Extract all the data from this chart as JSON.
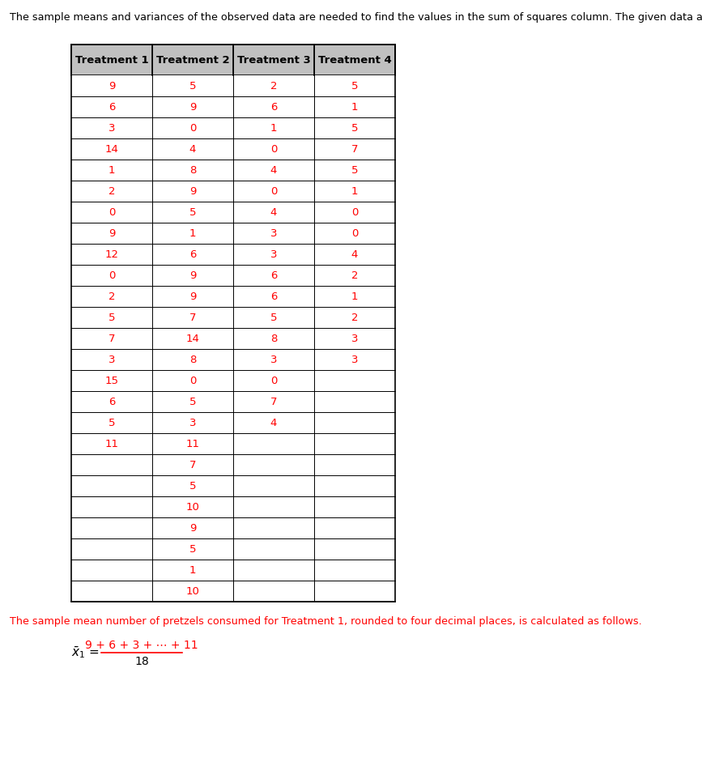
{
  "header": [
    "Treatment 1",
    "Treatment 2",
    "Treatment 3",
    "Treatment 4"
  ],
  "col1": [
    "9",
    "6",
    "3",
    "14",
    "1",
    "2",
    "0",
    "9",
    "12",
    "0",
    "2",
    "5",
    "7",
    "3",
    "15",
    "6",
    "5",
    "11",
    "",
    "",
    "",
    "",
    "",
    "",
    ""
  ],
  "col2": [
    "5",
    "9",
    "0",
    "4",
    "8",
    "9",
    "5",
    "1",
    "6",
    "9",
    "9",
    "7",
    "14",
    "8",
    "0",
    "5",
    "3",
    "11",
    "7",
    "5",
    "10",
    "9",
    "5",
    "1",
    "10"
  ],
  "col3": [
    "2",
    "6",
    "1",
    "0",
    "4",
    "0",
    "4",
    "3",
    "3",
    "6",
    "6",
    "5",
    "8",
    "3",
    "0",
    "7",
    "4",
    "",
    "",
    "",
    "",
    "",
    "",
    "",
    ""
  ],
  "col4": [
    "5",
    "1",
    "5",
    "7",
    "5",
    "1",
    "0",
    "0",
    "4",
    "2",
    "1",
    "2",
    "3",
    "3",
    "",
    "",
    "",
    "",
    "",
    "",
    "",
    "",
    "",
    "",
    ""
  ],
  "intro_text": "The sample means and variances of the observed data are needed to find the values in the sum of squares column. The given data are below.",
  "bottom_text": "The sample mean number of pretzels consumed for Treatment 1, rounded to four decimal places, is calculated as follows.",
  "formula_numerator": "9 + 6 + 3 + ⋯ + 11",
  "formula_denominator": "18",
  "header_bg": "#c0c0c0",
  "header_text_color": "#000000",
  "data_text_color": "#ff0000",
  "border_color": "#000000",
  "intro_color": "#000000",
  "bottom_color": "#ff0000",
  "formula_num_color": "#ff0000",
  "formula_denom_color": "#000000",
  "formula_lhs_color": "#000000",
  "num_data_rows": 25
}
